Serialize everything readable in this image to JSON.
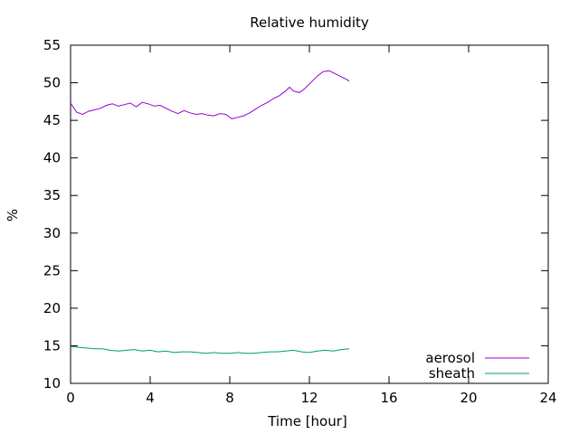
{
  "chart_data": {
    "type": "line",
    "title": "Relative humidity",
    "xlabel": "Time [hour]",
    "ylabel": "%",
    "xlim": [
      0,
      24
    ],
    "ylim": [
      10,
      55
    ],
    "xticks": [
      0,
      4,
      8,
      12,
      16,
      20,
      24
    ],
    "yticks": [
      10,
      15,
      20,
      25,
      30,
      35,
      40,
      45,
      50,
      55
    ],
    "grid": false,
    "legend_position": "bottom-right",
    "series": [
      {
        "name": "aerosol",
        "color": "#9400d3",
        "x": [
          0,
          0.3,
          0.6,
          0.9,
          1.2,
          1.5,
          1.8,
          2.1,
          2.4,
          2.7,
          3.0,
          3.3,
          3.6,
          3.9,
          4.2,
          4.5,
          4.8,
          5.1,
          5.4,
          5.7,
          6.0,
          6.3,
          6.6,
          6.9,
          7.2,
          7.5,
          7.8,
          8.1,
          8.4,
          8.7,
          9.0,
          9.3,
          9.6,
          9.9,
          10.2,
          10.5,
          10.8,
          11.0,
          11.2,
          11.5,
          11.8,
          12.1,
          12.4,
          12.7,
          13.0,
          13.3,
          13.6,
          13.9,
          14.0
        ],
        "y": [
          47.3,
          46.1,
          45.8,
          46.2,
          46.4,
          46.6,
          47.0,
          47.2,
          46.9,
          47.1,
          47.3,
          46.8,
          47.4,
          47.2,
          46.9,
          47.0,
          46.6,
          46.2,
          45.9,
          46.3,
          46.0,
          45.8,
          45.9,
          45.7,
          45.6,
          45.9,
          45.8,
          45.2,
          45.4,
          45.6,
          46.0,
          46.5,
          47.0,
          47.4,
          47.9,
          48.3,
          48.9,
          49.4,
          48.9,
          48.7,
          49.3,
          50.1,
          50.9,
          51.5,
          51.6,
          51.2,
          50.8,
          50.4,
          50.2
        ]
      },
      {
        "name": "sheath",
        "color": "#009e73",
        "x": [
          0,
          0.4,
          0.8,
          1.2,
          1.6,
          2.0,
          2.4,
          2.8,
          3.2,
          3.6,
          4.0,
          4.4,
          4.8,
          5.2,
          5.6,
          6.0,
          6.4,
          6.8,
          7.2,
          7.6,
          8.0,
          8.4,
          8.8,
          9.2,
          9.6,
          10.0,
          10.4,
          10.8,
          11.2,
          11.6,
          12.0,
          12.4,
          12.8,
          13.2,
          13.6,
          14.0
        ],
        "y": [
          14.9,
          14.8,
          14.7,
          14.6,
          14.6,
          14.4,
          14.3,
          14.4,
          14.5,
          14.3,
          14.4,
          14.2,
          14.3,
          14.1,
          14.2,
          14.2,
          14.1,
          14.0,
          14.1,
          14.0,
          14.0,
          14.1,
          14.0,
          14.0,
          14.1,
          14.2,
          14.2,
          14.3,
          14.4,
          14.2,
          14.1,
          14.3,
          14.4,
          14.3,
          14.5,
          14.6
        ]
      }
    ]
  }
}
